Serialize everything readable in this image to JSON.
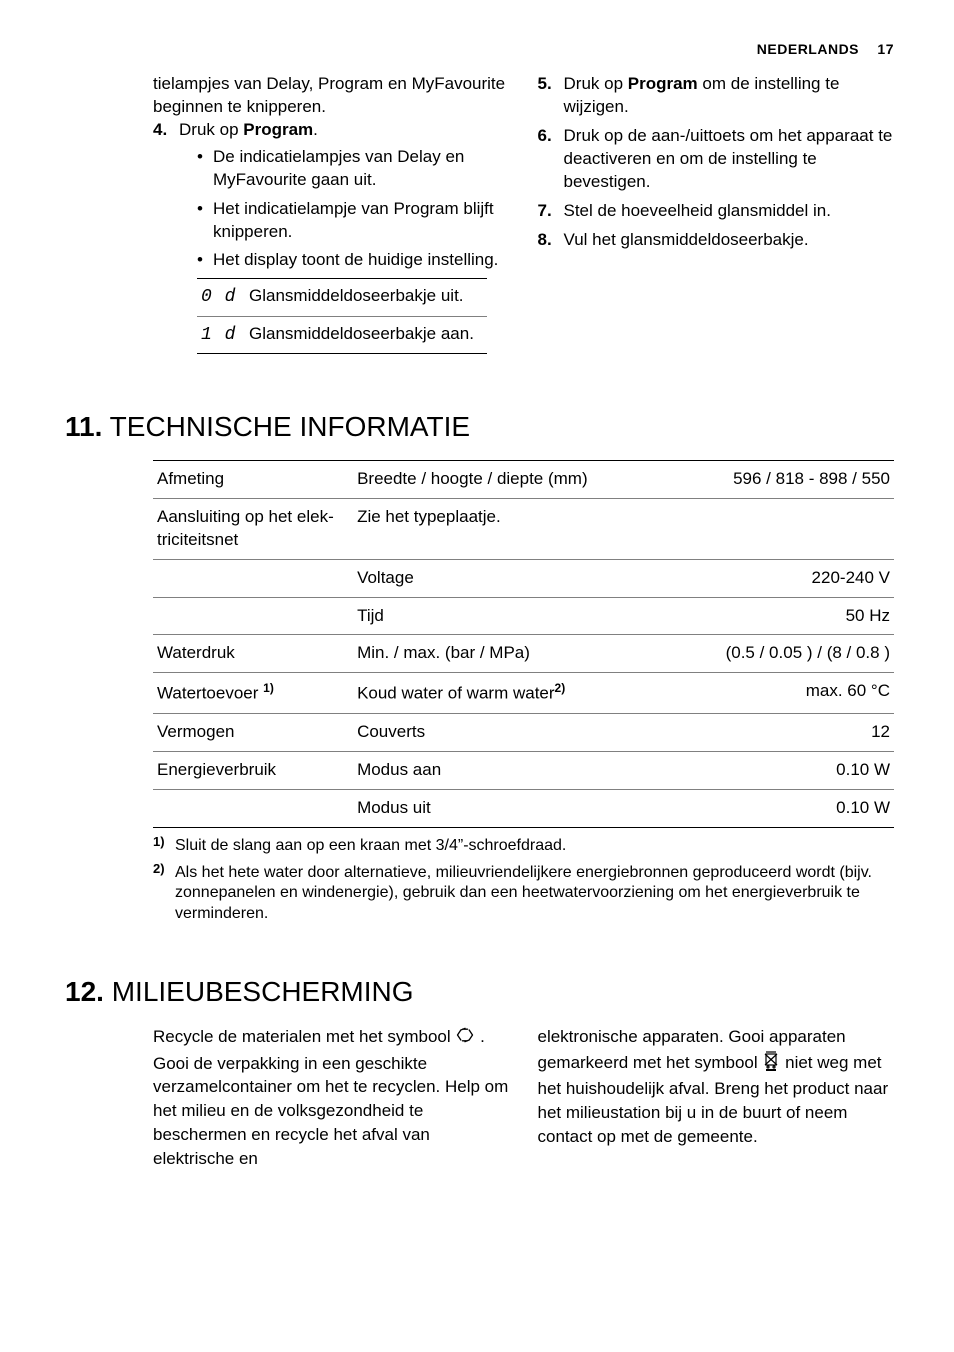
{
  "header": {
    "lang": "NEDERLANDS",
    "page": "17"
  },
  "leftCol": {
    "continuation": "tielampjes van Delay, Program en My­Favourite beginnen te knipperen.",
    "step4": {
      "num": "4.",
      "prefix": "Druk op ",
      "bold": "Program",
      "suffix": "."
    },
    "bullets": [
      "De indicatielampjes van Delay en MyFavourite gaan uit.",
      "Het indicatielampje van Program blijft knipperen.",
      "Het display toont de huidige instel­ling."
    ],
    "displayRows": [
      {
        "code": "0 d",
        "desc": "Glansmiddeldoseerbakje uit."
      },
      {
        "code": "1 d",
        "desc": "Glansmiddeldoseerbakje aan."
      }
    ]
  },
  "rightCol": {
    "steps": [
      {
        "num": "5.",
        "prefix": "Druk op ",
        "bold": "Program",
        "suffix": " om de instelling te wijzigen."
      },
      {
        "num": "6.",
        "text": "Druk op de aan-/uittoets om het appa­raat te deactiveren en om de instelling te bevestigen."
      },
      {
        "num": "7.",
        "text": "Stel de hoeveelheid glansmiddel in."
      },
      {
        "num": "8.",
        "text": "Vul het glansmiddeldoseerbakje."
      }
    ]
  },
  "section11": {
    "num": "11.",
    "title": "TECHNISCHE INFORMATIE",
    "rows": [
      {
        "c1": "Afmeting",
        "c2": "Breedte / hoogte / diepte (mm)",
        "c3": "596 / 818 - 898 / 550",
        "top": true
      },
      {
        "c1": "Aansluiting op het elek­triciteitsnet",
        "c2": "Zie het typeplaatje.",
        "c3": ""
      },
      {
        "c1": "",
        "c2": "Voltage",
        "c3": "220-240 V"
      },
      {
        "c1": "",
        "c2": "Tijd",
        "c3": "50 Hz"
      },
      {
        "c1": "Waterdruk",
        "c2": "Min. / max. (bar / MPa)",
        "c3": "(0.5 / 0.05 ) / (8 / 0.8 )"
      },
      {
        "c1": "Watertoevoer ",
        "c1fn": "1)",
        "c2": "Koud water of warm water",
        "c2fn": "2)",
        "c3": "max. 60 °C"
      },
      {
        "c1": "Vermogen",
        "c2": "Couverts",
        "c3": "12"
      },
      {
        "c1": "Energieverbruik",
        "c2": "Modus aan",
        "c3": "0.10 W"
      },
      {
        "c1": "",
        "c2": "Modus uit",
        "c3": "0.10 W",
        "bot": true
      }
    ],
    "footnotes": [
      {
        "num": "1)",
        "text": "Sluit de slang aan op een kraan met 3/4”-schroefdraad."
      },
      {
        "num": "2)",
        "text": "Als het hete water door alternatieve, milieuvriendelijkere energiebronnen geproduceerd wordt (bijv. zonnepanelen en windenergie), gebruik dan een heetwatervoorziening om het energieverbruik te verminderen."
      }
    ]
  },
  "section12": {
    "num": "12.",
    "title": "MILIEUBESCHERMING",
    "left": {
      "part1": "Recycle de materialen met het symbool",
      "part2": ". Gooi de verpakking in een geschikte verzamelcontainer om het te recyclen. Help om het milieu en de volksgezondheid te beschermen en recycle het afval van elektrische en"
    },
    "right": {
      "part1": "elektronische apparaten. Gooi apparaten gemarkeerd met het symbool ",
      "part2": " niet weg met het huishoudelijk afval. Breng het product naar het milieustation bij u in de buurt of neem contact op met de gemeente."
    }
  }
}
